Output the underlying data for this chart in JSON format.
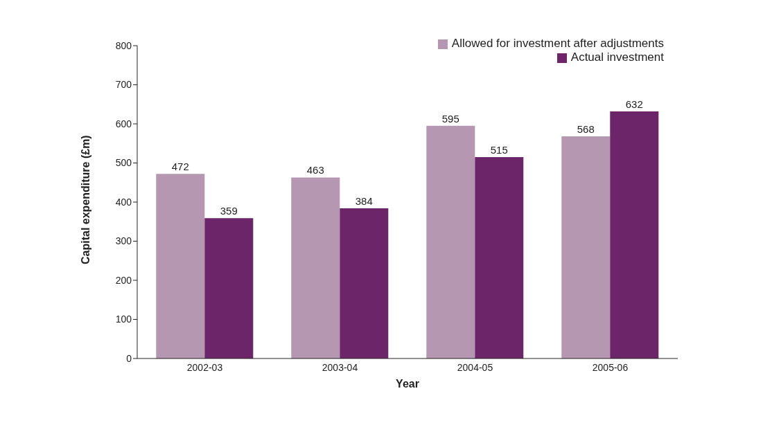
{
  "chart_data": {
    "type": "bar",
    "xlabel": "Year",
    "ylabel": "Capital expenditure (£m)",
    "categories": [
      "2002-03",
      "2003-04",
      "2004-05",
      "2005-06"
    ],
    "series": [
      {
        "name": "Allowed for investment after adjustments",
        "color": "#b597b1",
        "values": [
          472,
          463,
          595,
          568
        ]
      },
      {
        "name": "Actual investment",
        "color": "#6b2568",
        "values": [
          359,
          384,
          515,
          632
        ]
      }
    ],
    "ylim": [
      0,
      800
    ],
    "yticks": [
      0,
      100,
      200,
      300,
      400,
      500,
      600,
      700,
      800
    ],
    "grid": false,
    "legend": "top right",
    "data_labels": true
  }
}
